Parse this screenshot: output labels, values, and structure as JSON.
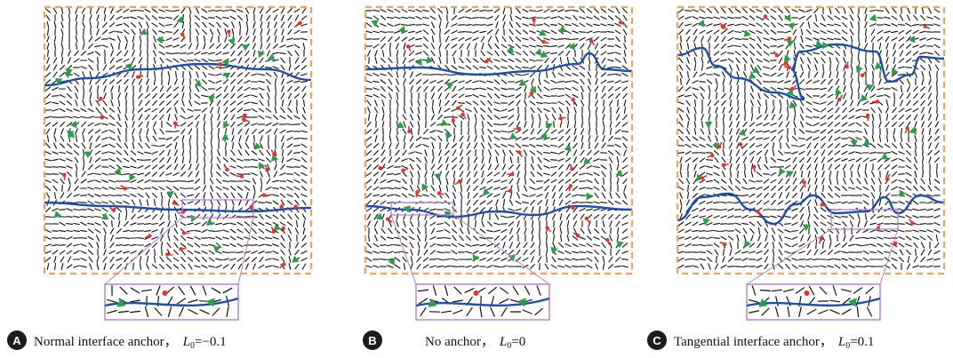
{
  "colors": {
    "frame": "#f0a25a",
    "interface": "#1f4fa8",
    "defect_plus": "#2e9d48",
    "defect_minus": "#e8322c",
    "inset_frame": "#b77ad1",
    "director": "#111111"
  },
  "panels": [
    {
      "badge": "A",
      "caption": "Normal interface anchor，",
      "param_symbol": "L",
      "param_subscript": "0",
      "param_value": "=−0.1",
      "anchor": "normal",
      "inset": true
    },
    {
      "badge": "B",
      "caption": "No anchor，",
      "param_symbol": "L",
      "param_subscript": "0",
      "param_value": "=0",
      "anchor": "none",
      "inset": true
    },
    {
      "badge": "C",
      "caption": "Tangential interface anchor，",
      "param_symbol": "L",
      "param_subscript": "0",
      "param_value": "=0.1",
      "anchor": "tangential",
      "inset": true
    }
  ]
}
